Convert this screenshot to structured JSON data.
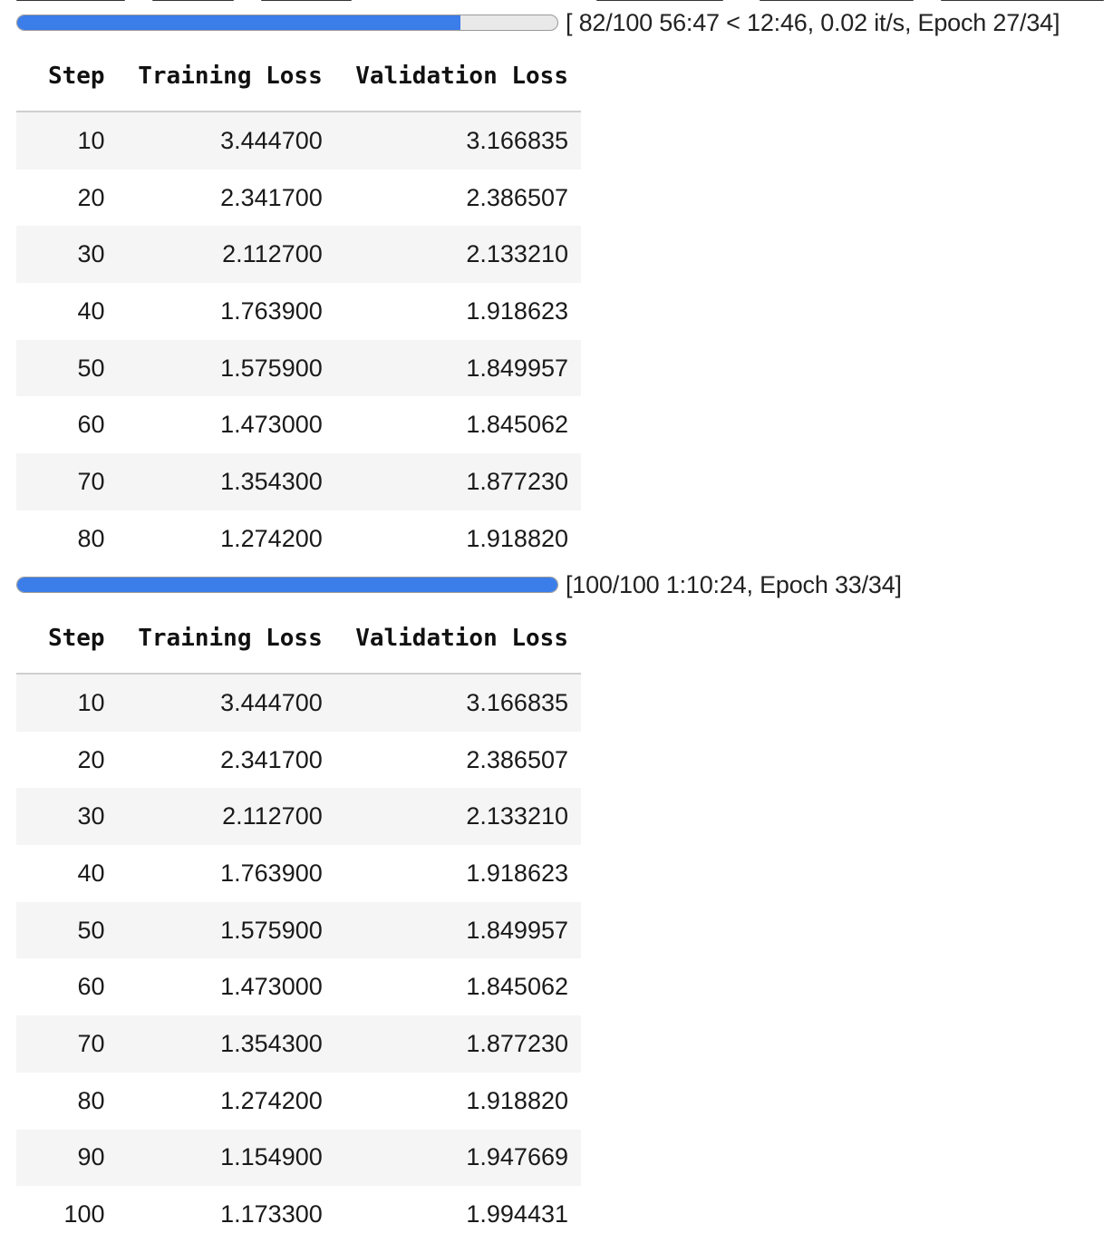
{
  "runs": [
    {
      "progress_fraction": 0.82,
      "progress_text": "[ 82/100 56:47 < 12:46, 0.02 it/s, Epoch 27/34]",
      "columns": [
        "Step",
        "Training Loss",
        "Validation Loss"
      ],
      "rows": [
        [
          "10",
          "3.444700",
          "3.166835"
        ],
        [
          "20",
          "2.341700",
          "2.386507"
        ],
        [
          "30",
          "2.112700",
          "2.133210"
        ],
        [
          "40",
          "1.763900",
          "1.918623"
        ],
        [
          "50",
          "1.575900",
          "1.849957"
        ],
        [
          "60",
          "1.473000",
          "1.845062"
        ],
        [
          "70",
          "1.354300",
          "1.877230"
        ],
        [
          "80",
          "1.274200",
          "1.918820"
        ]
      ]
    },
    {
      "progress_fraction": 1.0,
      "progress_text": "[100/100 1:10:24, Epoch 33/34]",
      "columns": [
        "Step",
        "Training Loss",
        "Validation Loss"
      ],
      "rows": [
        [
          "10",
          "3.444700",
          "3.166835"
        ],
        [
          "20",
          "2.341700",
          "2.386507"
        ],
        [
          "30",
          "2.112700",
          "2.133210"
        ],
        [
          "40",
          "1.763900",
          "1.918623"
        ],
        [
          "50",
          "1.575900",
          "1.849957"
        ],
        [
          "60",
          "1.473000",
          "1.845062"
        ],
        [
          "70",
          "1.354300",
          "1.877230"
        ],
        [
          "80",
          "1.274200",
          "1.918820"
        ],
        [
          "90",
          "1.154900",
          "1.947669"
        ],
        [
          "100",
          "1.173300",
          "1.994431"
        ]
      ]
    }
  ],
  "colors": {
    "progress_fill": "#3b7de9",
    "progress_track": "#e9e9e9",
    "row_stripe": "#f5f5f5"
  }
}
